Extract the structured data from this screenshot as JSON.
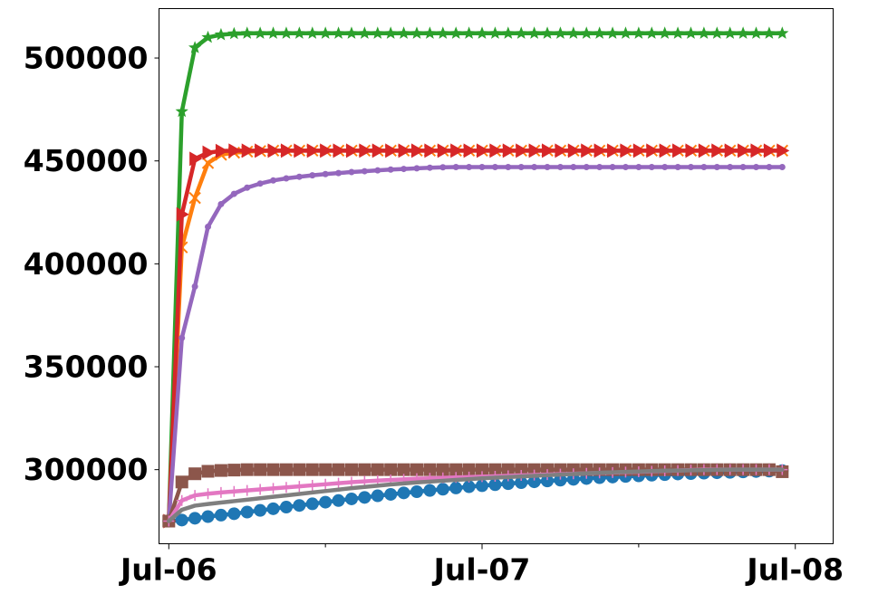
{
  "chart_data": {
    "type": "line",
    "title": "",
    "xlabel": "",
    "ylabel": "",
    "grid": false,
    "legend": "none",
    "x_range_hours": [
      -0.75,
      50.9
    ],
    "ylim": [
      264000,
      524000
    ],
    "x_ticks": [
      {
        "label": "Jul-06",
        "hour": 0
      },
      {
        "label": "Jul-07",
        "hour": 24
      },
      {
        "label": "Jul-08",
        "hour": 48
      }
    ],
    "x_minor_tick_hours": [
      12,
      36
    ],
    "y_ticks": [
      300000,
      350000,
      400000,
      450000,
      500000
    ],
    "y_tick_labels": [
      "300000",
      "350000",
      "400000",
      "450000",
      "500000"
    ],
    "x_time_step_hours": 1,
    "series": [
      {
        "color": "#1f77b4",
        "marker": "circle",
        "values": [
          275000,
          275500,
          276400,
          277200,
          277900,
          278600,
          279400,
          280200,
          281000,
          281800,
          282600,
          283400,
          284200,
          285000,
          285800,
          286500,
          287300,
          288000,
          288700,
          289300,
          289900,
          290500,
          291100,
          291700,
          292200,
          292700,
          293200,
          293700,
          294100,
          294500,
          294900,
          295300,
          295700,
          296100,
          296400,
          296700,
          297000,
          297300,
          297600,
          297900,
          298100,
          298300,
          298500,
          298700,
          298900,
          299100,
          299300,
          299500
        ]
      },
      {
        "color": "#ff7f0e",
        "marker": "x",
        "values": [
          275000,
          408000,
          432000,
          449000,
          453000,
          454000,
          454500,
          454800,
          455000,
          455000,
          455000,
          455000,
          455000,
          455000,
          455000,
          455000,
          455000,
          455000,
          455000,
          455000,
          455000,
          455000,
          455000,
          455000,
          455000,
          455000,
          455000,
          455000,
          455000,
          455000,
          455000,
          455000,
          455000,
          455000,
          455000,
          455000,
          455000,
          455000,
          455000,
          455000,
          455000,
          455000,
          455000,
          455000,
          455000,
          455000,
          455000,
          455000
        ]
      },
      {
        "color": "#2ca02c",
        "marker": "star",
        "values": [
          275000,
          474000,
          505000,
          510000,
          511300,
          511800,
          512000,
          512000,
          512000,
          512000,
          512000,
          512000,
          512000,
          512000,
          512000,
          512000,
          512000,
          512000,
          512000,
          512000,
          512000,
          512000,
          512000,
          512000,
          512000,
          512000,
          512000,
          512000,
          512000,
          512000,
          512000,
          512000,
          512000,
          512000,
          512000,
          512000,
          512000,
          512000,
          512000,
          512000,
          512000,
          512000,
          512000,
          512000,
          512000,
          512000,
          512000,
          512000
        ]
      },
      {
        "color": "#d62728",
        "marker": "triangle-right",
        "values": [
          275000,
          424000,
          451000,
          454000,
          454800,
          455000,
          455000,
          455000,
          455000,
          455000,
          455000,
          455000,
          455000,
          455000,
          455000,
          455000,
          455000,
          455000,
          455000,
          455000,
          455000,
          455000,
          455000,
          455000,
          455000,
          455000,
          455000,
          455000,
          455000,
          455000,
          455000,
          455000,
          455000,
          455000,
          455000,
          455000,
          455000,
          455000,
          455000,
          455000,
          455000,
          455000,
          455000,
          455000,
          455000,
          455000,
          455000,
          455000
        ]
      },
      {
        "color": "#9467bd",
        "marker": "small-circle",
        "values": [
          275000,
          364000,
          389000,
          418000,
          429000,
          434000,
          437000,
          439000,
          440500,
          441500,
          442300,
          443000,
          443600,
          444100,
          444600,
          445000,
          445400,
          445800,
          446100,
          446400,
          446700,
          446900,
          447000,
          447000,
          447000,
          447000,
          447000,
          447000,
          447000,
          447000,
          447000,
          447000,
          447000,
          447000,
          447000,
          447000,
          447000,
          447000,
          447000,
          447000,
          447000,
          447000,
          447000,
          447000,
          447000,
          447000,
          447000,
          447000
        ]
      },
      {
        "color": "#8c564b",
        "marker": "square",
        "values": [
          275000,
          294000,
          298000,
          299200,
          299600,
          299800,
          300000,
          300000,
          300000,
          300000,
          300000,
          300000,
          300000,
          300000,
          300000,
          300000,
          300000,
          300000,
          300000,
          300000,
          300000,
          300000,
          300000,
          300000,
          300000,
          300000,
          300000,
          300000,
          300000,
          300000,
          300000,
          300000,
          300000,
          300000,
          300000,
          300000,
          300000,
          300000,
          300000,
          300000,
          300000,
          300000,
          300000,
          300000,
          300000,
          300000,
          300000,
          299000
        ]
      },
      {
        "color": "#e377c2",
        "marker": "plus",
        "values": [
          275000,
          285000,
          287500,
          288300,
          288900,
          289400,
          289900,
          290400,
          290900,
          291400,
          291900,
          292400,
          292900,
          293400,
          293900,
          294300,
          294700,
          295000,
          295300,
          295600,
          295800,
          296000,
          296200,
          296400,
          296600,
          296800,
          297000,
          297200,
          297400,
          297600,
          297800,
          298000,
          298200,
          298400,
          298600,
          298800,
          299000,
          299200,
          299400,
          299600,
          299800,
          300000,
          300000,
          300000,
          300000,
          300000,
          300000,
          300000
        ]
      },
      {
        "color": "#7f7f7f",
        "marker": "small-dot",
        "values": [
          275000,
          280500,
          282500,
          283300,
          284000,
          284700,
          285400,
          286100,
          286800,
          287500,
          288200,
          288900,
          289600,
          290300,
          291000,
          291600,
          292200,
          292800,
          293300,
          293800,
          294200,
          294600,
          295000,
          295400,
          295800,
          296100,
          296400,
          296700,
          297000,
          297300,
          297600,
          297900,
          298200,
          298500,
          298700,
          298900,
          299100,
          299300,
          299500,
          299600,
          299700,
          299800,
          299900,
          300000,
          300000,
          300000,
          300000,
          300000
        ]
      }
    ]
  }
}
